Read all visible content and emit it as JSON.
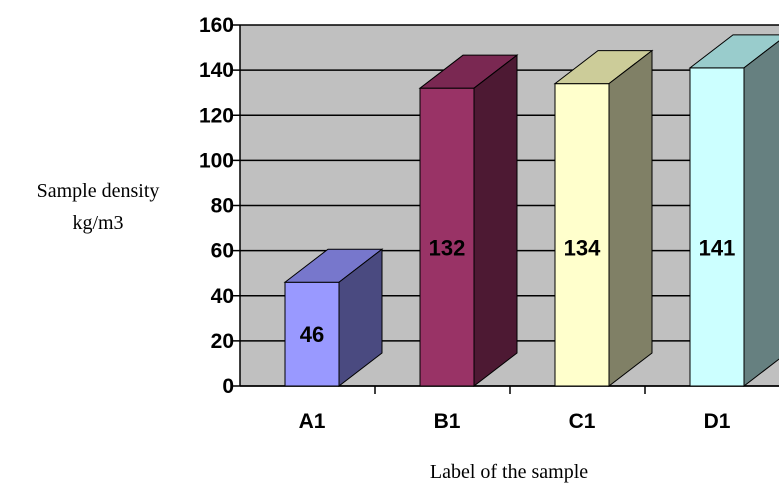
{
  "chart_data": {
    "type": "bar",
    "style": "3d-column",
    "categories": [
      "A1",
      "B1",
      "C1",
      "D1"
    ],
    "values": [
      46,
      132,
      134,
      141
    ],
    "ylabel_lines": [
      "Sample density",
      "kg/m3"
    ],
    "xlabel": "Label of the sample",
    "ylim": [
      0,
      160
    ],
    "yticks": [
      0,
      20,
      40,
      60,
      80,
      100,
      120,
      140,
      160
    ],
    "grid": true,
    "legend": "none",
    "colors": {
      "plot_background": "#c0c0c0",
      "series": [
        {
          "front": "#9999ff",
          "top": "#7777cc",
          "side": "#4a4a80"
        },
        {
          "front": "#993366",
          "top": "#7a2852",
          "side": "#4d1933"
        },
        {
          "front": "#ffffcc",
          "top": "#cccc99",
          "side": "#808066"
        },
        {
          "front": "#ccffff",
          "top": "#99cccc",
          "side": "#668080"
        }
      ]
    }
  }
}
